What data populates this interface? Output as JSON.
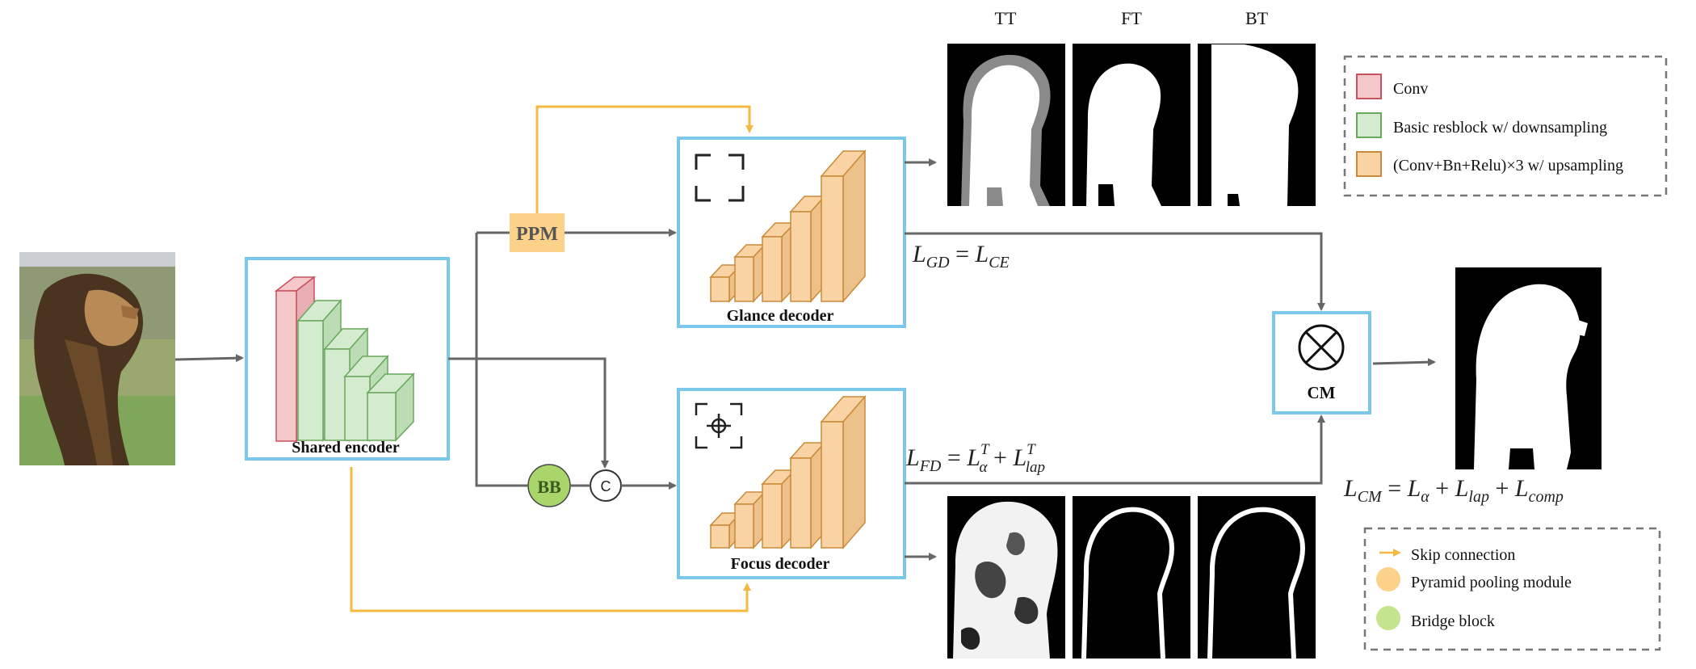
{
  "columns": {
    "tt": "TT",
    "ft": "FT",
    "bt": "BT"
  },
  "modules": {
    "shared_encoder": "Shared encoder",
    "glance_decoder": "Glance decoder",
    "focus_decoder": "Focus decoder",
    "ppm": "PPM",
    "bb": "BB",
    "concat": "C",
    "cm": "CM"
  },
  "losses": {
    "gd": {
      "lhs": "L",
      "lhs_sub": "GD",
      "eq": " = ",
      "rhs": "L",
      "rhs_sub": "CE"
    },
    "fd": {
      "lhs": "L",
      "lhs_sub": "FD",
      "eq": " = ",
      "t1": "L",
      "t1_sub": "α",
      "t1_sup": "T",
      "plus": " + ",
      "t2": "L",
      "t2_sub": "lap",
      "t2_sup": "T"
    },
    "cm": {
      "lhs": "L",
      "lhs_sub": "CM",
      "eq": " = ",
      "t1": "L",
      "t1_sub": "α",
      "plus1": " + ",
      "t2": "L",
      "t2_sub": "lap",
      "plus2": " + ",
      "t3": "L",
      "t3_sub": "comp"
    }
  },
  "legend_blocks": [
    {
      "label": "Conv",
      "fill": "#f4c7cb",
      "stroke": "#c9505e"
    },
    {
      "label": "Basic resblock w/ downsampling",
      "fill": "#d4ebd0",
      "stroke": "#6aa85c"
    },
    {
      "label": "(Conv+Bn+Relu)×3 w/ upsampling",
      "fill": "#f9d3a3",
      "stroke": "#c98a3a"
    }
  ],
  "legend_misc": [
    {
      "label": "Skip connection",
      "color": "#f5b942",
      "icon": "arrow-icon"
    },
    {
      "label": "Pyramid pooling module",
      "color": "#fcd28b",
      "icon": "circle-icon"
    },
    {
      "label": "Bridge block",
      "color": "#c4e48e",
      "icon": "circle-icon"
    }
  ],
  "colors": {
    "module_border": "#7cc8ea",
    "arrow": "#666666",
    "skip": "#f5b942",
    "ppm_fill": "#fcd28b",
    "bb_fill": "#a9d66a"
  }
}
